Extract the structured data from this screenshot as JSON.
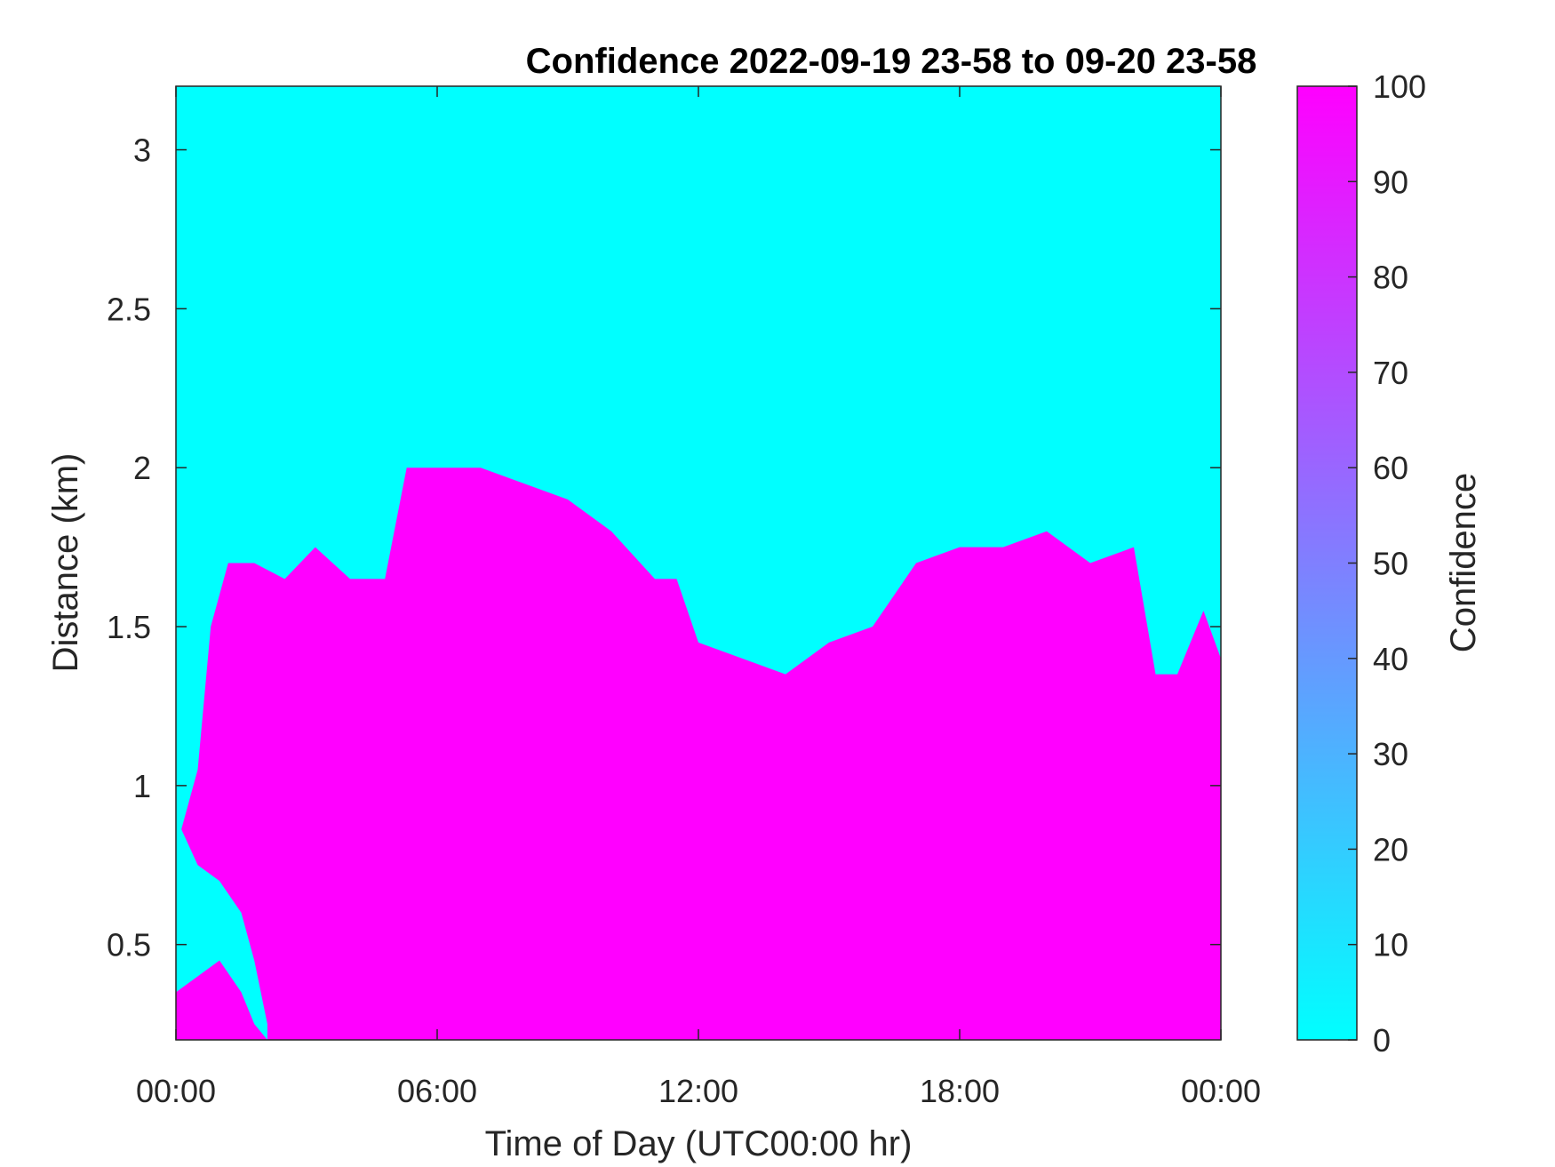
{
  "chart_data": {
    "type": "heatmap",
    "title": "Confidence 2022-09-19 23-58 to 09-20 23-58",
    "xlabel": "Time of Day (UTC00:00 hr)",
    "ylabel": "Distance (km)",
    "xlim": [
      0,
      24
    ],
    "ylim": [
      0.2,
      3.2
    ],
    "x_ticks": [
      {
        "value": 0,
        "label": "00:00"
      },
      {
        "value": 6,
        "label": "06:00"
      },
      {
        "value": 12,
        "label": "12:00"
      },
      {
        "value": 18,
        "label": "18:00"
      },
      {
        "value": 24,
        "label": "00:00"
      }
    ],
    "y_ticks": [
      {
        "value": 0.5,
        "label": "0.5"
      },
      {
        "value": 1,
        "label": "1"
      },
      {
        "value": 1.5,
        "label": "1.5"
      },
      {
        "value": 2,
        "label": "2"
      },
      {
        "value": 2.5,
        "label": "2.5"
      },
      {
        "value": 3,
        "label": "3"
      }
    ],
    "colorbar": {
      "label": "Confidence",
      "range": [
        0,
        100
      ],
      "ticks": [
        0,
        10,
        20,
        30,
        40,
        50,
        60,
        70,
        80,
        90,
        100
      ],
      "low_color": "#00ffff",
      "high_color": "#ff00ff"
    },
    "grid": false,
    "values_observed": [
      0,
      100
    ],
    "high_confidence_top_km": {
      "time_hr": [
        0,
        0.5,
        0.8,
        1.2,
        1.8,
        2.5,
        3.2,
        4.0,
        4.8,
        5.3,
        6.0,
        7.0,
        8.0,
        9.0,
        10.0,
        11.0,
        11.5,
        12.0,
        13.0,
        14.0,
        15.0,
        16.0,
        17.0,
        18.0,
        19.0,
        20.0,
        21.0,
        22.0,
        22.5,
        23.0,
        23.6,
        24.0
      ],
      "top_km": [
        0.8,
        1.05,
        1.5,
        1.7,
        1.7,
        1.65,
        1.75,
        1.65,
        1.65,
        2.0,
        2.0,
        2.0,
        1.95,
        1.9,
        1.8,
        1.65,
        1.65,
        1.45,
        1.4,
        1.35,
        1.45,
        1.5,
        1.7,
        1.75,
        1.75,
        1.8,
        1.7,
        1.75,
        1.35,
        1.35,
        1.55,
        1.4
      ]
    },
    "low_confidence_pocket": {
      "time_hr": [
        0,
        0.5,
        1.0,
        1.5,
        1.8,
        2.1
      ],
      "bottom_km": [
        0.35,
        0.4,
        0.45,
        0.35,
        0.25,
        0.2
      ],
      "top_km": [
        0.9,
        0.75,
        0.7,
        0.6,
        0.45,
        0.25
      ]
    },
    "series": [
      {
        "name": "Confidence",
        "values": []
      }
    ]
  }
}
